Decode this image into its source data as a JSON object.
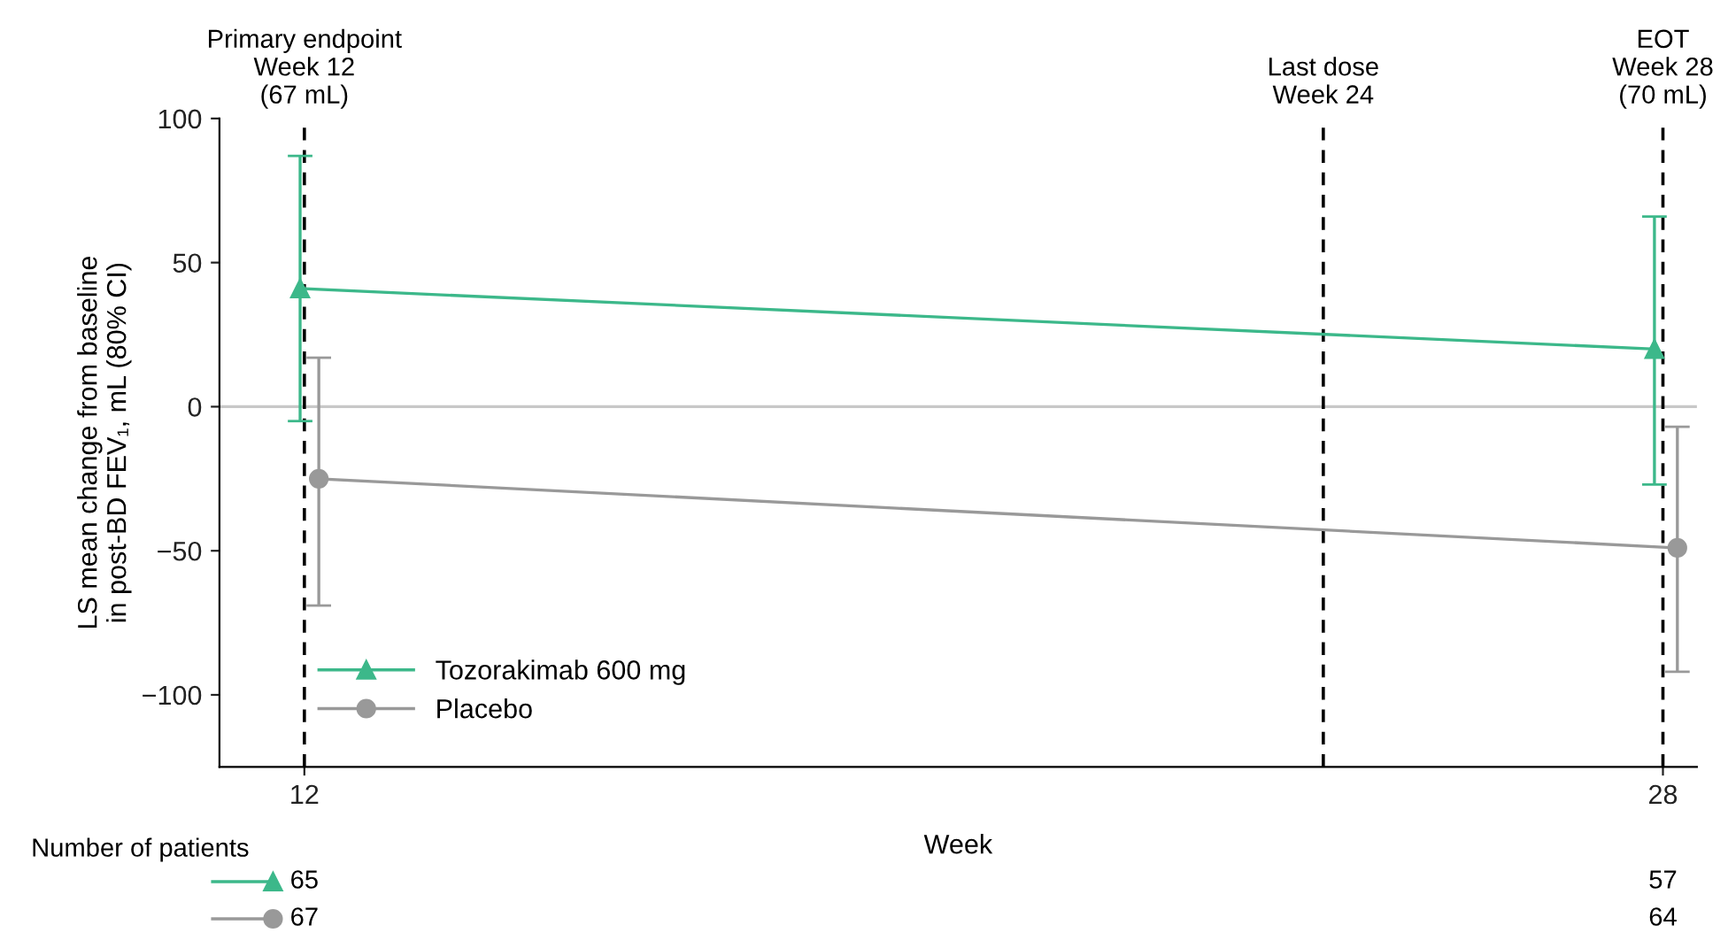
{
  "chart_data": {
    "type": "line",
    "xlabel": "Week",
    "ylabel": "LS mean change from baseline\nin post-BD FEV₁, mL (80% CI)",
    "xlim": [
      11,
      28.4
    ],
    "xticks": [
      12,
      28
    ],
    "ylim": [
      -125,
      100
    ],
    "yticks": [
      -100,
      -50,
      0,
      50,
      100
    ],
    "series": [
      {
        "name": "Tozorakimab 600 mg",
        "color": "#3cb88a",
        "marker": "triangle",
        "x": [
          11.95,
          27.9
        ],
        "values": [
          41,
          20
        ],
        "errors": [
          [
            -5,
            87
          ],
          [
            -27,
            66
          ]
        ]
      },
      {
        "name": "Placebo",
        "color": "#999999",
        "marker": "circle",
        "x": [
          12.17,
          28.17
        ],
        "values": [
          -25,
          -49
        ],
        "errors": [
          [
            -69,
            17
          ],
          [
            -92,
            -7
          ]
        ]
      }
    ],
    "ref_lines": [
      {
        "axis": "x",
        "value": 12,
        "label": "Primary endpoint\nWeek 12\n(67 mL)",
        "color": "#000000",
        "line_style": "dashed"
      },
      {
        "axis": "x",
        "value": 24,
        "label": "Last dose\nWeek 24",
        "color": "#000000",
        "line_style": "dashed"
      },
      {
        "axis": "x",
        "value": 28,
        "label": "EOT\nWeek 28\n(70 mL)",
        "color": "#000000",
        "line_style": "dashed"
      },
      {
        "axis": "y",
        "value": 0,
        "color": "#c8c8c8",
        "line_style": "solid"
      }
    ],
    "annotations": [
      "Number of patients",
      "65",
      "57",
      "67",
      "64"
    ],
    "legend": "bottom left",
    "grid": false,
    "line_style": "solid"
  }
}
